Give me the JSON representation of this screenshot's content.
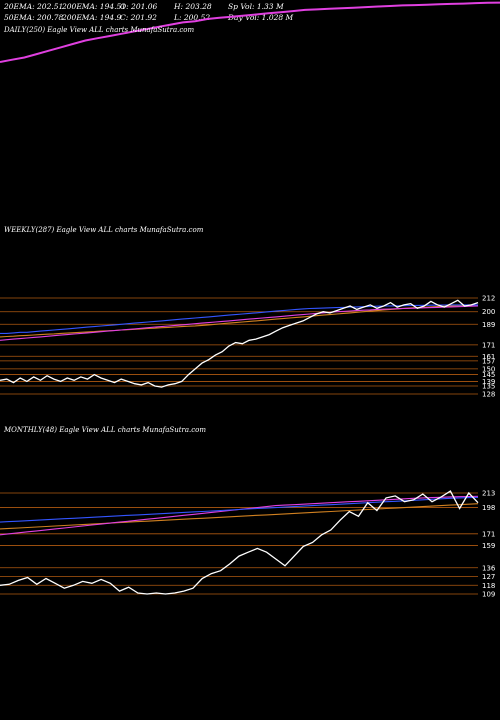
{
  "header": {
    "row1": [
      "20EMA: 202.51",
      "200EMA: 194.51",
      "O: 201.06",
      "H: 203.28",
      "Sp Vol: 1.33 M"
    ],
    "row2": [
      "50EMA: 200.78",
      "200EMA: 194.9",
      "C: 201.92",
      "L: 200.52",
      "Day Vol: 1.028 M"
    ]
  },
  "panels": {
    "daily": {
      "label": "DAILY(250) Eagle  View  ALL  charts MunafaSutra.com"
    },
    "weekly": {
      "label": "WEEKLY(287) Eagle  View  ALL  charts MunafaSutra.com"
    },
    "monthly": {
      "label": "MONTHLY(48) Eagle  View  ALL  charts MunafaSutra.com"
    }
  },
  "colors": {
    "ema_magenta": "#e040e0",
    "ema_blue": "#3355ff",
    "ema_orange": "#d08020",
    "price": "#ffffff",
    "level": "#b05a10"
  },
  "chart_data": [
    {
      "type": "line",
      "panel": "daily",
      "series": [
        {
          "values": [
            150,
            152,
            154,
            157,
            160,
            163,
            166,
            169,
            171,
            173,
            175,
            177,
            179,
            181,
            183,
            185,
            186,
            188,
            189,
            190,
            191,
            192,
            193,
            194,
            195,
            196,
            196.5,
            197,
            197.5,
            198,
            198.5,
            199,
            199.5,
            200,
            200.3,
            200.6,
            201,
            201.3,
            201.6,
            202,
            202.3,
            202.5
          ]
        }
      ]
    },
    {
      "type": "line",
      "panel": "weekly",
      "yticks": [
        212,
        200,
        189,
        171,
        161,
        157,
        150,
        145,
        139,
        135,
        128
      ],
      "series": [
        {
          "values": [
            140,
            141,
            138,
            142,
            139,
            143,
            140,
            144,
            141,
            139,
            142,
            140,
            143,
            141,
            145,
            142,
            140,
            138,
            141,
            139,
            137,
            136,
            138,
            135,
            134,
            136,
            137,
            139,
            145,
            150,
            155,
            158,
            162,
            165,
            170,
            173,
            172,
            175,
            176,
            178,
            180,
            183,
            186,
            188,
            190,
            192,
            195,
            198,
            200,
            199,
            201,
            203,
            205,
            202,
            204,
            206,
            203,
            205,
            208,
            204,
            206,
            207,
            203,
            205,
            209,
            206,
            204,
            207,
            210,
            205,
            206,
            208
          ]
        },
        {
          "values": [
            181,
            181,
            181.5,
            182,
            182,
            182.5,
            183,
            183.5,
            184,
            184.5,
            185,
            185.5,
            186,
            186.5,
            187,
            187.5,
            188,
            188.5,
            189,
            189.5,
            190,
            190.5,
            191,
            191.5,
            192,
            192.5,
            193,
            193.5,
            194,
            194.5,
            195,
            195.5,
            196,
            196.5,
            197,
            197.5,
            198,
            198.5,
            199,
            199.5,
            200,
            200.5,
            201,
            201.5,
            202,
            202.5,
            202.8,
            203,
            203.2,
            203.4,
            203.6,
            203.8,
            204,
            204.2,
            204.4,
            204.6,
            204.8,
            205,
            205.1,
            205.2,
            205.3,
            205.4,
            205.5,
            205.6,
            205.7,
            205.8,
            205.9,
            206,
            206,
            206,
            206,
            206
          ]
        },
        {
          "values": [
            175,
            175.5,
            176,
            176.5,
            177,
            177.5,
            178,
            178.5,
            179,
            179.5,
            180,
            180.5,
            181,
            181.5,
            182,
            182.5,
            183,
            183.5,
            184,
            184.5,
            185,
            185.5,
            186,
            186.5,
            187,
            187.5,
            188,
            188.5,
            189,
            189.5,
            190,
            190.5,
            191,
            191.5,
            192,
            192.5,
            193,
            193.5,
            194,
            194.5,
            195,
            195.5,
            196,
            196.5,
            197,
            197.5,
            198,
            198.5,
            199,
            199.5,
            200,
            200.3,
            200.6,
            201,
            201.3,
            201.6,
            202,
            202.2,
            202.4,
            202.6,
            202.8,
            203,
            203.2,
            203.4,
            203.6,
            203.8,
            204,
            204.2,
            204.4,
            204.6,
            204.8,
            205
          ]
        },
        {
          "values": [
            178,
            178.3,
            178.6,
            179,
            179.3,
            179.6,
            180,
            180.3,
            180.6,
            181,
            181.3,
            181.6,
            182,
            182.3,
            182.6,
            183,
            183.3,
            183.6,
            184,
            184.3,
            184.6,
            185,
            185.3,
            185.6,
            186,
            186.3,
            186.6,
            187,
            187.3,
            187.6,
            188,
            188.5,
            189,
            189.5,
            190,
            190.5,
            191,
            191.5,
            192,
            192.5,
            193,
            193.5,
            194,
            194.5,
            195,
            195.5,
            196,
            196.5,
            197,
            197.5,
            198,
            198.5,
            199,
            199.5,
            200,
            200.5,
            201,
            201.5,
            202,
            202.5,
            203,
            203.3,
            203.6,
            203.9,
            204.2,
            204.5,
            204.8,
            205,
            205.2,
            205.4,
            205.6,
            205.8
          ]
        }
      ]
    },
    {
      "type": "line",
      "panel": "monthly",
      "yticks": [
        213,
        198,
        171,
        159,
        136,
        127,
        118,
        109
      ],
      "series": [
        {
          "values": [
            118,
            119,
            123,
            126,
            119,
            125,
            120,
            115,
            118,
            122,
            120,
            124,
            120,
            112,
            116,
            110,
            109,
            110,
            109,
            110,
            112,
            115,
            125,
            130,
            133,
            140,
            148,
            152,
            156,
            152,
            145,
            138,
            148,
            158,
            162,
            170,
            175,
            185,
            194,
            189,
            203,
            195,
            208,
            210,
            204,
            206,
            212,
            204,
            209,
            215,
            197,
            213,
            203
          ]
        },
        {
          "values": [
            183,
            183.5,
            184,
            184.5,
            185,
            185.5,
            186,
            186.5,
            187,
            187.5,
            188,
            188.5,
            189,
            189.5,
            190,
            190.5,
            191,
            191.5,
            192,
            192.5,
            193,
            193.5,
            194,
            194.5,
            195,
            195.5,
            196,
            196.5,
            197,
            197.5,
            198,
            198.5,
            199,
            199.5,
            200,
            200.5,
            201,
            201.5,
            202,
            202.5,
            203,
            203.5,
            204,
            204.5,
            205,
            205.5,
            206,
            206.5,
            207,
            207.5,
            208,
            208.3,
            208.5
          ]
        },
        {
          "values": [
            170,
            171,
            172,
            173,
            174,
            175,
            176,
            177,
            178,
            179,
            180,
            181,
            182,
            183,
            184,
            185,
            186,
            187,
            188,
            189,
            190,
            191,
            192,
            193,
            194,
            195,
            196,
            197,
            198,
            199,
            200,
            200.5,
            201,
            201.5,
            202,
            202.5,
            203,
            203.5,
            204,
            204.5,
            205,
            205.5,
            206,
            206.5,
            207,
            207.5,
            208,
            208.3,
            208.6,
            209,
            209.2,
            209.4,
            209.6
          ]
        },
        {
          "values": [
            176,
            176.5,
            177,
            177.5,
            178,
            178.5,
            179,
            179.5,
            180,
            180.5,
            181,
            181.5,
            182,
            182.5,
            183,
            183.5,
            184,
            184.5,
            185,
            185.5,
            186,
            186.5,
            187,
            187.5,
            188,
            188.5,
            189,
            189.5,
            190,
            190.5,
            191,
            191.5,
            192,
            192.5,
            193,
            193.5,
            194,
            194.5,
            195,
            195.5,
            196,
            196.5,
            197,
            197.5,
            198,
            198.5,
            199,
            199.5,
            200,
            200.5,
            201,
            201.5,
            202
          ]
        }
      ]
    }
  ]
}
